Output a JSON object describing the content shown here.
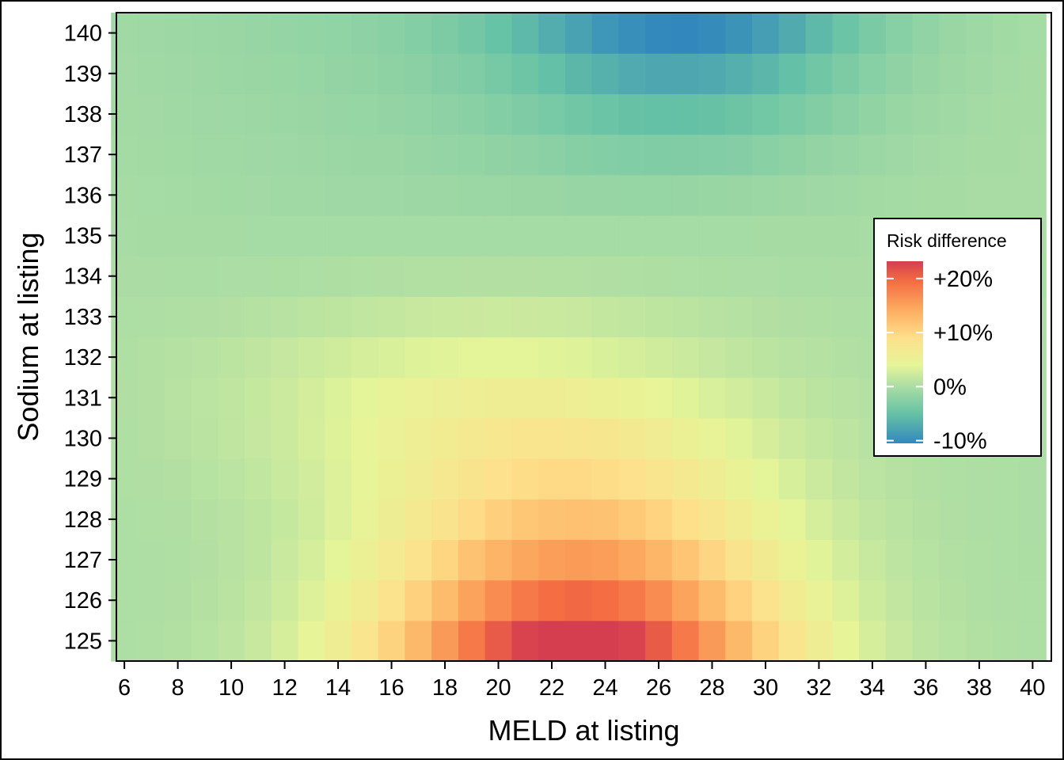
{
  "chart_data": {
    "type": "heatmap",
    "xlabel": "MELD at listing",
    "ylabel": "Sodium at listing",
    "x": [
      6,
      7,
      8,
      9,
      10,
      11,
      12,
      13,
      14,
      15,
      16,
      17,
      18,
      19,
      20,
      21,
      22,
      23,
      24,
      25,
      26,
      27,
      28,
      29,
      30,
      31,
      32,
      33,
      34,
      35,
      36,
      37,
      38,
      39,
      40
    ],
    "y": [
      125,
      126,
      127,
      128,
      129,
      130,
      131,
      132,
      133,
      134,
      135,
      136,
      137,
      138,
      139,
      140
    ],
    "xlim": [
      5.7,
      40.7
    ],
    "ylim": [
      124.5,
      140.5
    ],
    "xticks": [
      "6",
      "8",
      "10",
      "12",
      "14",
      "16",
      "18",
      "20",
      "22",
      "24",
      "26",
      "28",
      "30",
      "32",
      "34",
      "36",
      "38",
      "40"
    ],
    "yticks": [
      "125",
      "126",
      "127",
      "128",
      "129",
      "130",
      "131",
      "132",
      "133",
      "134",
      "135",
      "136",
      "137",
      "138",
      "139",
      "140"
    ],
    "colorscale": [
      "#3288bd",
      "#66c2a5",
      "#abdda4",
      "#e6f598",
      "#fee08b",
      "#fdae61",
      "#f46d43",
      "#d53e4f"
    ],
    "colorscale_stops": [
      -0.105,
      -0.05,
      0.0,
      0.04,
      0.09,
      0.14,
      0.195,
      0.232
    ],
    "legend": {
      "title": "Risk difference",
      "labels": [
        "+20%",
        "+10%",
        "0%",
        "-10%"
      ],
      "label_values": [
        0.2,
        0.1,
        0.0,
        -0.1
      ],
      "placement": "right"
    },
    "description": "Risk difference rises as sodium falls, peaking near MELD 23 at sodium 125; negative values near MELD 26 at sodium 140; values taper toward 0 at low and high MELD."
  }
}
